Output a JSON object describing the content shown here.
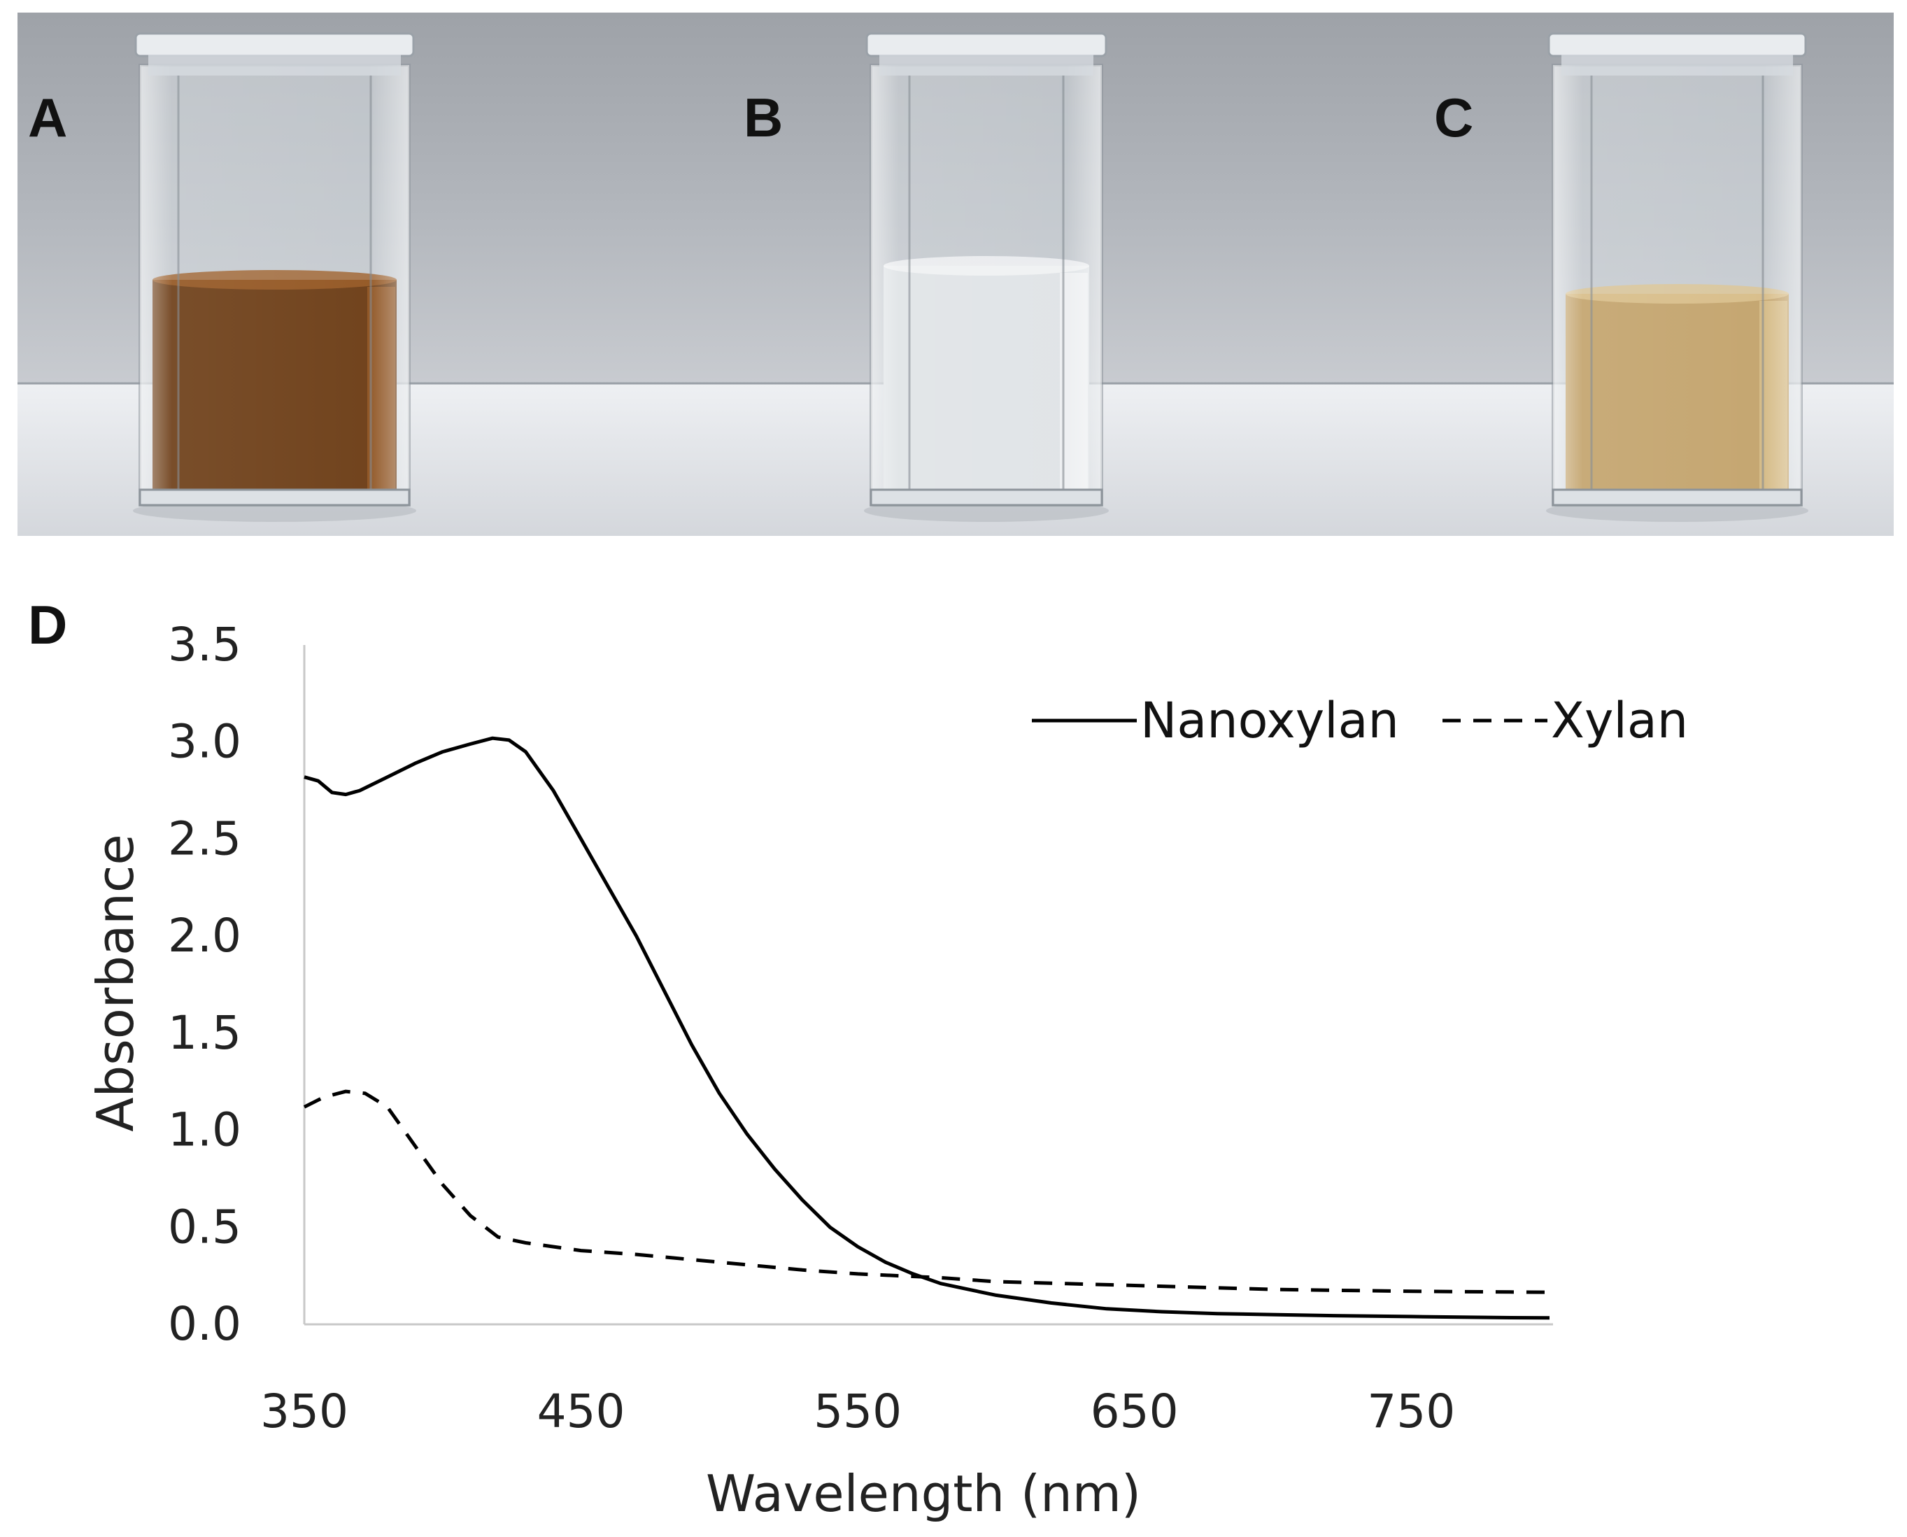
{
  "photo": {
    "cuvettes": [
      {
        "label": "A",
        "liquid_color": "#6a3a12",
        "liquid_highlight": "#9b5a22"
      },
      {
        "label": "B",
        "liquid_color": "#dfe3e6",
        "liquid_highlight": "#f2f4f5"
      },
      {
        "label": "C",
        "liquid_color": "#c2a26a",
        "liquid_highlight": "#dcc38f"
      }
    ],
    "wall_color": "#a9adb3",
    "table_color": "#e4e6ea"
  },
  "chart_data": {
    "type": "line",
    "panel_label": "D",
    "xlabel": "Wavelength (nm)",
    "ylabel": "Absorbance",
    "xlim": [
      350,
      800
    ],
    "ylim": [
      0.0,
      3.5
    ],
    "xticks": [
      350,
      450,
      550,
      650,
      750
    ],
    "xtick_labels": [
      "350",
      "450",
      "550",
      "650",
      "750"
    ],
    "yticks": [
      0,
      0.5,
      1,
      1.5,
      2,
      2.5,
      3,
      3.5
    ],
    "ytick_labels": [
      "0.0",
      "0.5",
      "1.0",
      "1.5",
      "2.0",
      "2.5",
      "3.0",
      "3.5"
    ],
    "legend_position": "top-right",
    "series": [
      {
        "name": "Nanoxylan",
        "style": "solid",
        "x": [
          350,
          355,
          360,
          365,
          370,
          380,
          390,
          400,
          410,
          418,
          424,
          430,
          440,
          450,
          460,
          470,
          480,
          490,
          500,
          510,
          520,
          530,
          540,
          550,
          560,
          570,
          580,
          590,
          600,
          620,
          640,
          660,
          680,
          700,
          720,
          750,
          780,
          800
        ],
        "y": [
          2.82,
          2.8,
          2.74,
          2.73,
          2.75,
          2.82,
          2.89,
          2.95,
          2.99,
          3.02,
          3.01,
          2.95,
          2.75,
          2.5,
          2.25,
          2.0,
          1.72,
          1.44,
          1.19,
          0.98,
          0.8,
          0.64,
          0.5,
          0.4,
          0.32,
          0.26,
          0.21,
          0.18,
          0.15,
          0.11,
          0.08,
          0.065,
          0.055,
          0.05,
          0.045,
          0.04,
          0.035,
          0.033
        ]
      },
      {
        "name": "Xylan",
        "style": "dashed",
        "x": [
          350,
          357,
          365,
          372,
          380,
          390,
          400,
          410,
          420,
          430,
          450,
          470,
          500,
          530,
          550,
          580,
          600,
          650,
          700,
          750,
          800
        ],
        "y": [
          1.12,
          1.17,
          1.2,
          1.19,
          1.12,
          0.92,
          0.72,
          0.56,
          0.45,
          0.42,
          0.38,
          0.36,
          0.32,
          0.28,
          0.26,
          0.24,
          0.22,
          0.2,
          0.18,
          0.17,
          0.165
        ]
      }
    ]
  }
}
